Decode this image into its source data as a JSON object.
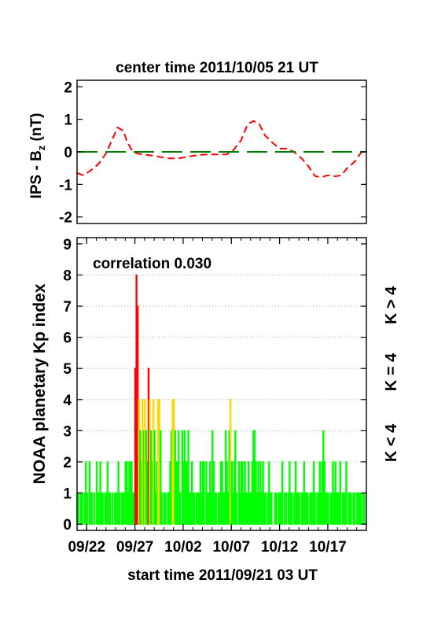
{
  "chart_data": [
    {
      "type": "line",
      "title": "center time 2011/10/05 21 UT",
      "ylabel_main": "IPS - B",
      "ylabel_sub": "z",
      "ylabel_unit": " (nT)",
      "ylim": [
        -2.2,
        2.2
      ],
      "yticks": [
        "2",
        "1",
        "0",
        "-1",
        "-2"
      ],
      "ytick_values": [
        2,
        1,
        0,
        -1,
        -2
      ],
      "xlim": [
        0,
        30
      ],
      "grid": false,
      "series": [
        {
          "role": "model-bz",
          "color": "#ff0000",
          "style": "dashed",
          "x": [
            0,
            0.7,
            1.5,
            2.2,
            3.0,
            3.6,
            4.2,
            4.8,
            5.2,
            5.7,
            6.2,
            6.8,
            7.5,
            8.5,
            9.5,
            10.5,
            11.5,
            12.5,
            13.5,
            14.5,
            15.5,
            16.2,
            17.0,
            17.7,
            18.3,
            18.9,
            19.5,
            20.2,
            21.0,
            21.8,
            22.5,
            23.3,
            24.0,
            24.7,
            25.3,
            26.0,
            26.8,
            27.4,
            28.0,
            28.8,
            29.5
          ],
          "y": [
            -0.65,
            -0.72,
            -0.55,
            -0.38,
            -0.05,
            0.35,
            0.75,
            0.65,
            0.3,
            0.05,
            -0.05,
            -0.08,
            -0.1,
            -0.15,
            -0.2,
            -0.2,
            -0.15,
            -0.1,
            -0.08,
            -0.08,
            -0.08,
            0.05,
            0.35,
            0.85,
            0.95,
            0.85,
            0.5,
            0.3,
            0.1,
            0.1,
            0.0,
            -0.2,
            -0.45,
            -0.75,
            -0.78,
            -0.72,
            -0.75,
            -0.72,
            -0.5,
            -0.3,
            0.0
          ]
        },
        {
          "role": "zero-line",
          "color": "#008000",
          "style": "long-dash",
          "x": [
            0,
            30
          ],
          "y": [
            0,
            0
          ]
        }
      ]
    },
    {
      "type": "bar",
      "annotation": "correlation 0.030",
      "ylabel": "NOAA planetary Kp index",
      "xlabel": "start time 2011/09/21 03 UT",
      "ylim": [
        -0.2,
        9.2
      ],
      "yticks": [
        "0",
        "1",
        "2",
        "3",
        "4",
        "5",
        "6",
        "7",
        "8",
        "9"
      ],
      "ytick_values": [
        0,
        1,
        2,
        3,
        4,
        5,
        6,
        7,
        8,
        9
      ],
      "xlim": [
        0,
        30
      ],
      "xtick_labels": [
        "09/22",
        "09/27",
        "10/02",
        "10/07",
        "10/12",
        "10/17"
      ],
      "xtick_values": [
        1,
        6,
        11,
        16,
        21,
        26
      ],
      "grid": "horizontal dotted",
      "bar_width_days": 0.125,
      "legend": {
        "placement": "right, vertical",
        "items": [
          {
            "label": "K < 4",
            "color": "#00ff00"
          },
          {
            "label": "K = 4",
            "color": "#ffd700"
          },
          {
            "label": "K > 4",
            "color": "#ff0000"
          }
        ]
      },
      "color_rule": {
        "low": "#00ff00",
        "equal4": "#ffd700",
        "high": "#ff0000"
      },
      "values": [
        1,
        1,
        0,
        1,
        1,
        0,
        1,
        2,
        1,
        0,
        2,
        1,
        1,
        0,
        1,
        0,
        2,
        1,
        1,
        2,
        1,
        1,
        0,
        1,
        1,
        2,
        1,
        1,
        0,
        1,
        0,
        1,
        1,
        1,
        2,
        1,
        0,
        1,
        1,
        1,
        2,
        2,
        1,
        2,
        2,
        2,
        1,
        1,
        5,
        8,
        7,
        4,
        3,
        2,
        4,
        3,
        4,
        3,
        2,
        5,
        4,
        3,
        2,
        4,
        3,
        1,
        2,
        4,
        4,
        3,
        1,
        0,
        1,
        1,
        0,
        1,
        1,
        2,
        3,
        4,
        4,
        3,
        2,
        2,
        3,
        1,
        0,
        3,
        2,
        3,
        2,
        2,
        3,
        1,
        1,
        2,
        1,
        1,
        0,
        1,
        1,
        1,
        2,
        1,
        2,
        2,
        0,
        2,
        1,
        1,
        2,
        1,
        3,
        2,
        1,
        1,
        0,
        1,
        1,
        2,
        2,
        1,
        1,
        3,
        2,
        1,
        3,
        4,
        2,
        1,
        2,
        3,
        1,
        0,
        2,
        1,
        2,
        2,
        1,
        2,
        1,
        1,
        2,
        1,
        1,
        2,
        3,
        3,
        2,
        1,
        2,
        1,
        2,
        1,
        2,
        1,
        1,
        0,
        1,
        2,
        1,
        1,
        0,
        0,
        1,
        1,
        0,
        1,
        1,
        1,
        2,
        0,
        1,
        1,
        0,
        1,
        2,
        1,
        1,
        0,
        1,
        2,
        1,
        1,
        1,
        0,
        1,
        1,
        2,
        1,
        1,
        1,
        0,
        1,
        1,
        1,
        2,
        1,
        0,
        1,
        1,
        2,
        1,
        2,
        3,
        2,
        1,
        1,
        1,
        0,
        1,
        1,
        2,
        1,
        2,
        1,
        1,
        1,
        2,
        0,
        1,
        1,
        1,
        2,
        0,
        1,
        1,
        1,
        0,
        1,
        1,
        0,
        1,
        1,
        1,
        1,
        0,
        1,
        1,
        0
      ]
    }
  ]
}
